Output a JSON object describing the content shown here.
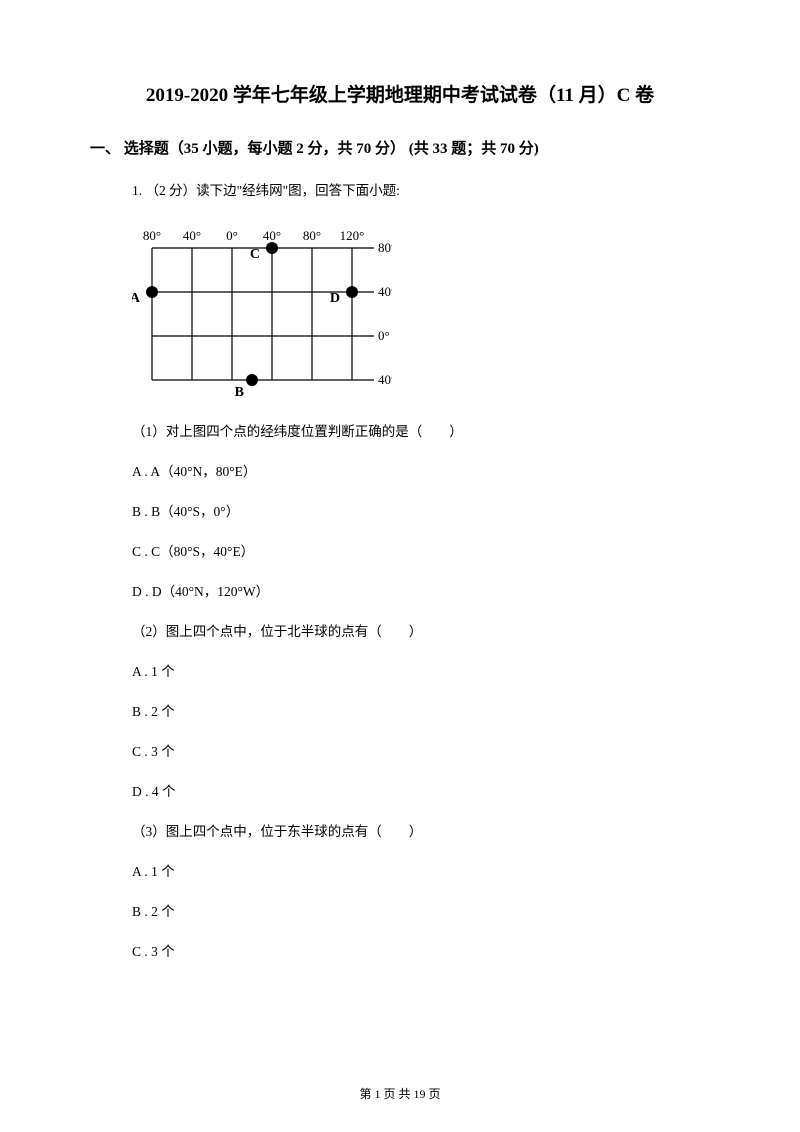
{
  "title": "2019-2020 学年七年级上学期地理期中考试试卷（11 月）C 卷",
  "section_header": "一、 选择题（35 小题，每小题 2 分，共 70 分） (共 33 题；共 70 分)",
  "q1": {
    "stem": "1. （2 分）读下边\"经纬网\"图，回答下面小题:",
    "diagram": {
      "lon_labels": [
        "80°",
        "40°",
        "0°",
        "40°",
        "80°",
        "120°"
      ],
      "lat_labels": [
        "80°",
        "40°",
        "0°",
        "40°"
      ],
      "points": {
        "A": {
          "lon_idx": 0,
          "lat_idx": 1,
          "label_side": "left"
        },
        "B": {
          "lon_idx": 2.5,
          "lat_idx": 3,
          "label_side": "bottom"
        },
        "C": {
          "lon_idx": 3,
          "lat_idx": 0,
          "label_side": "left"
        },
        "D": {
          "lon_idx": 5,
          "lat_idx": 1,
          "label_side": "left"
        }
      },
      "colors": {
        "line": "#000000",
        "point_fill": "#000000",
        "text": "#000000",
        "background": "#ffffff"
      },
      "line_width": 1.2,
      "point_radius": 6,
      "font_size": 13
    },
    "sub1": {
      "prompt": "（1）对上图四个点的经纬度位置判断正确的是（　　）",
      "options": {
        "A": "A . A（40°N，80°E）",
        "B": "B . B（40°S，0°）",
        "C": "C . C（80°S，40°E）",
        "D": "D . D（40°N，120°W）"
      }
    },
    "sub2": {
      "prompt": "（2）图上四个点中，位于北半球的点有（　　）",
      "options": {
        "A": "A . 1 个",
        "B": "B . 2 个",
        "C": "C . 3 个",
        "D": "D . 4 个"
      }
    },
    "sub3": {
      "prompt": "（3）图上四个点中，位于东半球的点有（　　）",
      "options": {
        "A": "A . 1 个",
        "B": "B . 2 个",
        "C": "C . 3 个"
      }
    }
  },
  "footer": "第 1 页 共 19 页"
}
